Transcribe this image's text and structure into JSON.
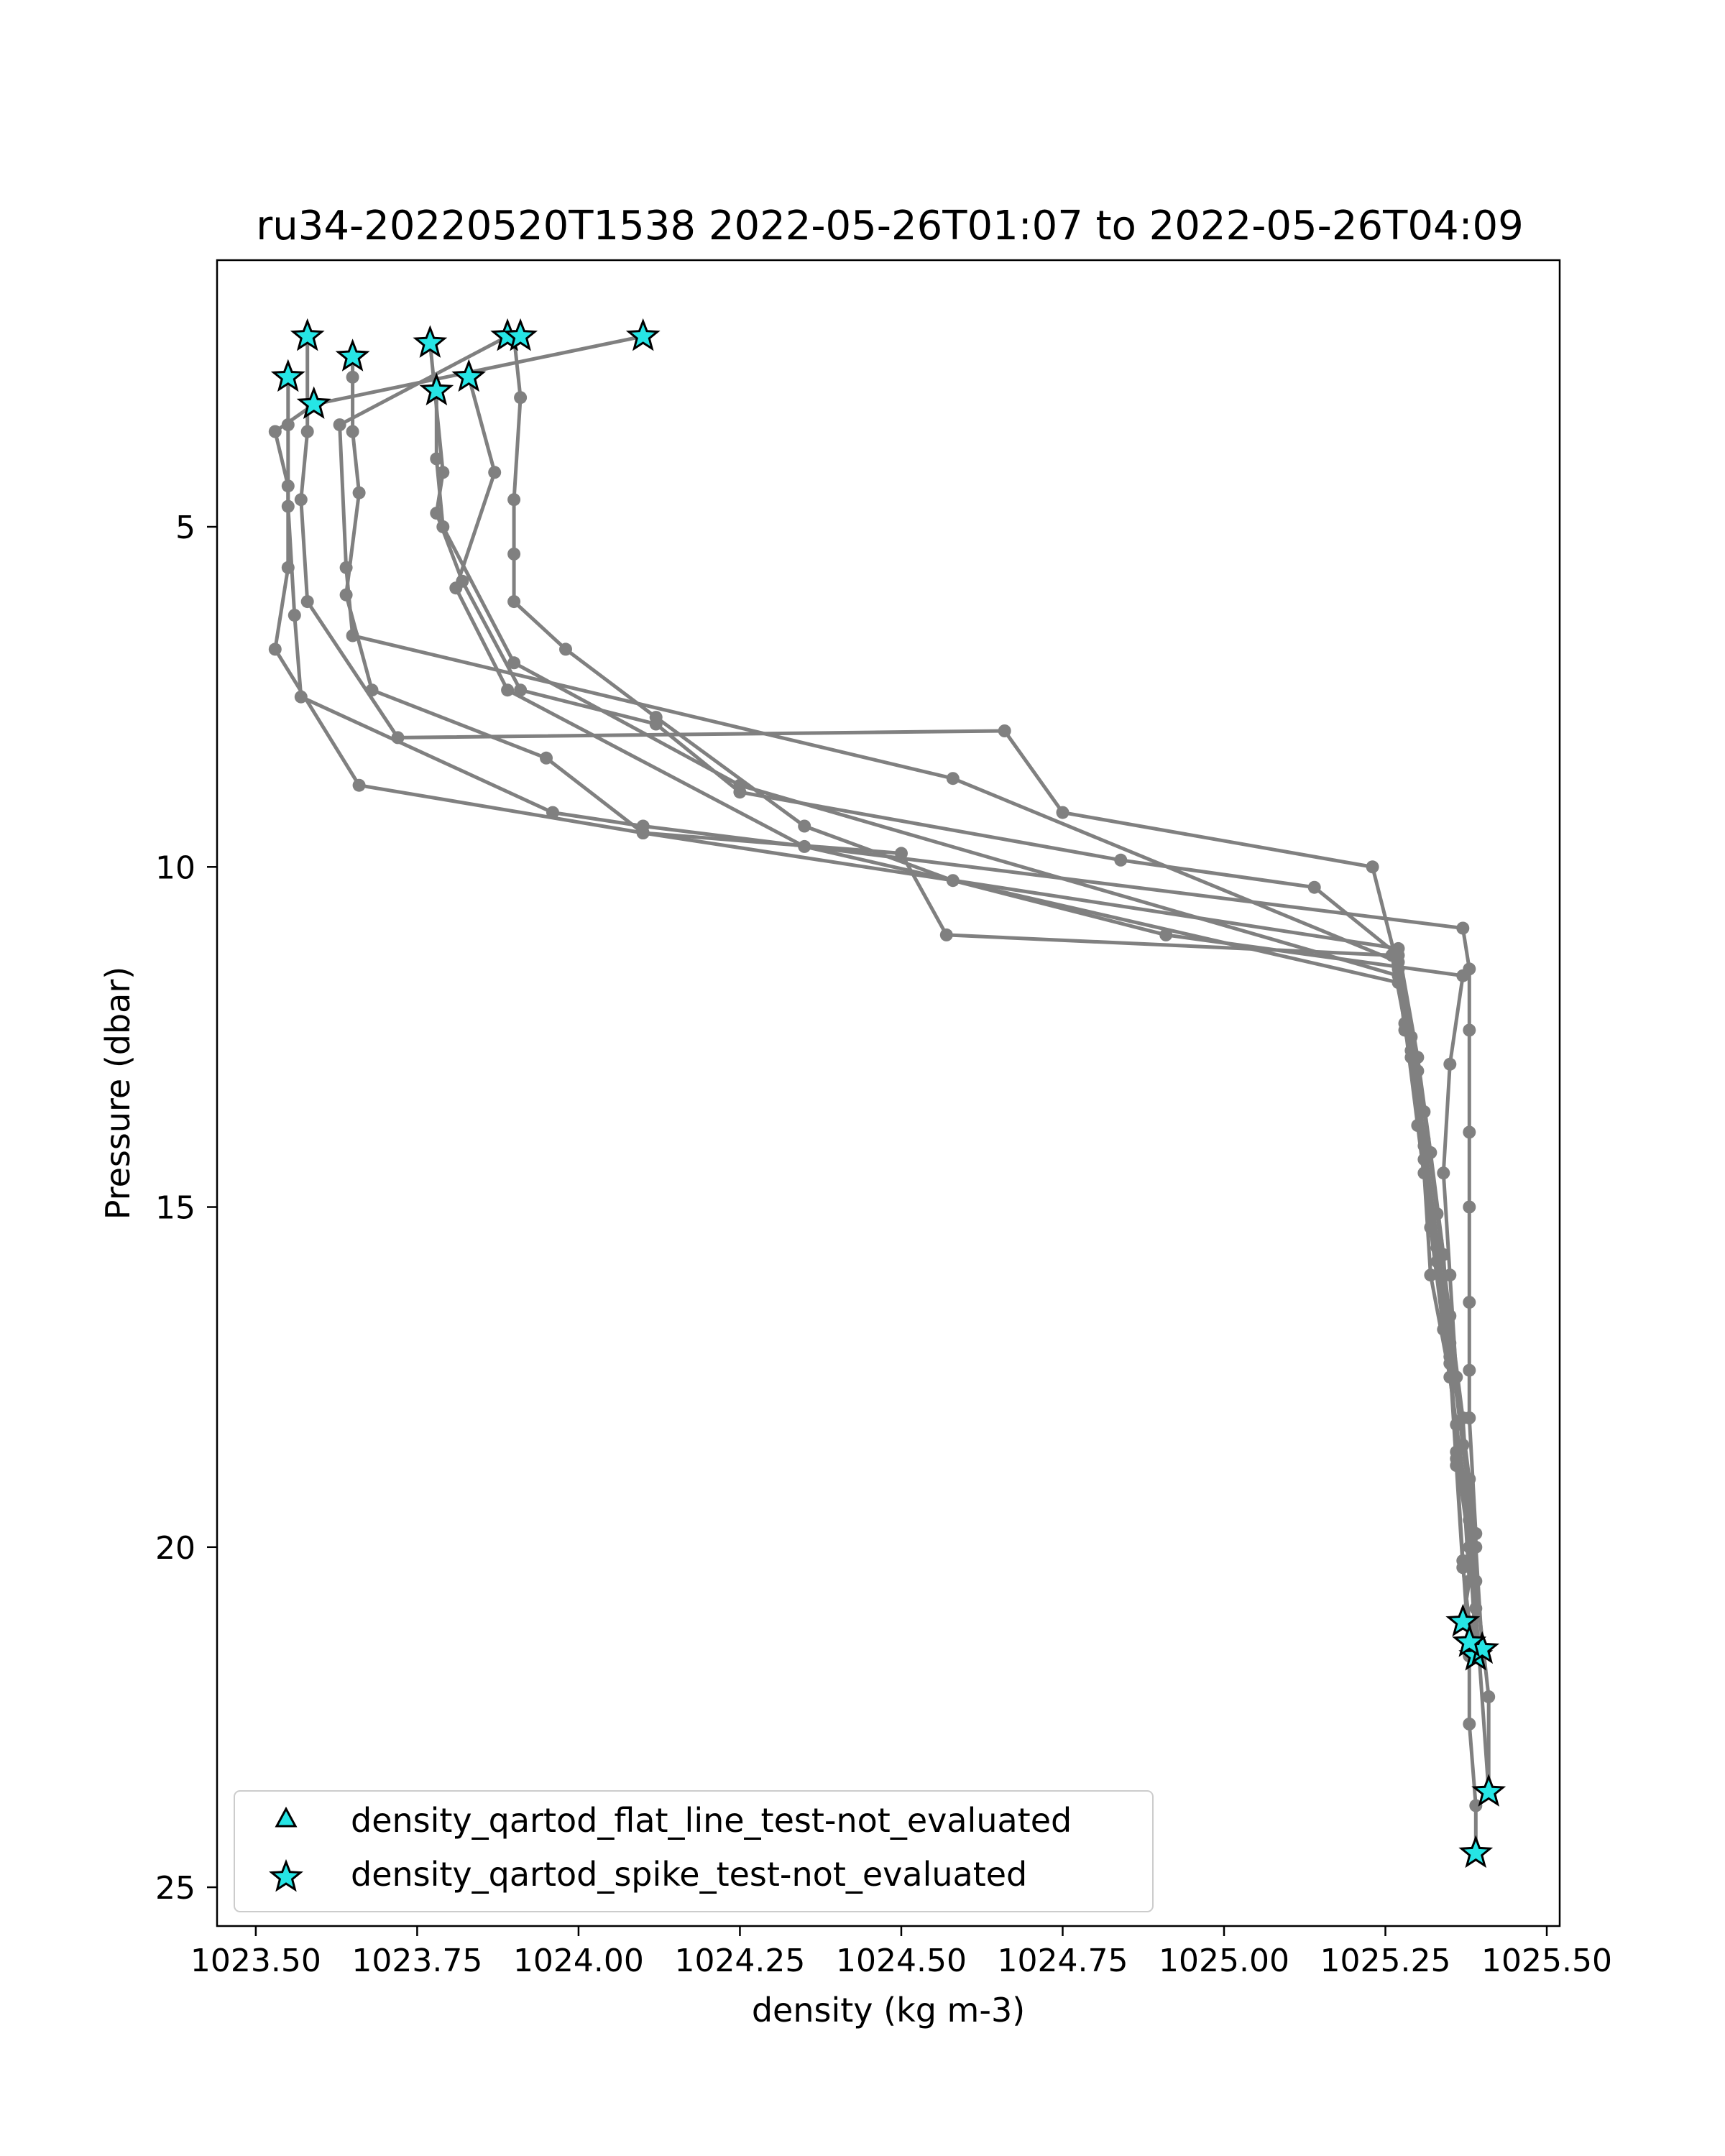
{
  "chart_data": {
    "type": "line",
    "title": "ru34-20220520T1538 2022-05-26T01:07 to 2022-05-26T04:09",
    "xlabel": "density (kg m-3)",
    "ylabel": "Pressure (dbar)",
    "xlim": [
      1023.44,
      1025.52
    ],
    "ylim": [
      25.57,
      1.08
    ],
    "y_inverted": true,
    "xticks": [
      "1023.50",
      "1023.75",
      "1024.00",
      "1024.25",
      "1024.50",
      "1024.75",
      "1025.00",
      "1025.25",
      "1025.50"
    ],
    "xtick_values": [
      1023.5,
      1023.75,
      1024.0,
      1024.25,
      1024.5,
      1024.75,
      1025.0,
      1025.25,
      1025.5
    ],
    "yticks": [
      "5",
      "10",
      "15",
      "20",
      "25"
    ],
    "ytick_values": [
      5,
      10,
      15,
      20,
      25
    ],
    "grid": false,
    "line_color": "#808080",
    "marker_face_color": "#26e5e5",
    "legend": {
      "position": "lower-left",
      "entries": [
        {
          "label": "density_qartod_flat_line_test-not_evaluated",
          "marker": "triangle"
        },
        {
          "label": "density_qartod_spike_test-not_evaluated",
          "marker": "star"
        }
      ]
    },
    "series": [
      {
        "points": [
          [
            1023.58,
            2.2
          ],
          [
            1023.58,
            3.6
          ],
          [
            1023.57,
            4.6
          ],
          [
            1023.58,
            6.1
          ],
          [
            1023.72,
            8.1
          ],
          [
            1024.66,
            8.0
          ],
          [
            1024.75,
            9.2
          ],
          [
            1025.23,
            10.0
          ],
          [
            1025.27,
            11.5
          ],
          [
            1025.3,
            13.0
          ],
          [
            1025.31,
            14.5
          ],
          [
            1025.32,
            16.0
          ],
          [
            1025.35,
            17.5
          ],
          [
            1025.37,
            19.0
          ],
          [
            1025.38,
            20.5
          ],
          [
            1025.37,
            21.1
          ]
        ]
      },
      {
        "points": [
          [
            1023.65,
            2.5
          ],
          [
            1023.65,
            2.8
          ],
          [
            1023.65,
            3.6
          ],
          [
            1023.66,
            4.5
          ],
          [
            1023.64,
            6.0
          ],
          [
            1023.68,
            7.4
          ],
          [
            1023.95,
            8.4
          ],
          [
            1024.1,
            9.5
          ],
          [
            1024.5,
            9.8
          ],
          [
            1024.57,
            11.0
          ],
          [
            1025.26,
            11.3
          ],
          [
            1025.28,
            12.3
          ],
          [
            1025.3,
            13.8
          ],
          [
            1025.32,
            15.3
          ],
          [
            1025.34,
            16.8
          ],
          [
            1025.36,
            18.2
          ],
          [
            1025.38,
            19.6
          ],
          [
            1025.39,
            21.6
          ]
        ]
      },
      {
        "points": [
          [
            1023.77,
            2.3
          ],
          [
            1023.79,
            4.2
          ],
          [
            1023.78,
            4.8
          ],
          [
            1023.82,
            5.8
          ],
          [
            1023.91,
            7.4
          ],
          [
            1024.12,
            7.9
          ],
          [
            1024.25,
            8.9
          ],
          [
            1024.84,
            9.9
          ],
          [
            1025.14,
            10.3
          ],
          [
            1025.27,
            11.3
          ],
          [
            1025.29,
            12.5
          ],
          [
            1025.31,
            14.0
          ],
          [
            1025.33,
            15.5
          ],
          [
            1025.35,
            17.0
          ],
          [
            1025.37,
            18.5
          ],
          [
            1025.39,
            20.0
          ],
          [
            1025.4,
            21.5
          ]
        ]
      },
      {
        "points": [
          [
            1023.9,
            2.2
          ],
          [
            1023.91,
            3.1
          ],
          [
            1023.9,
            4.6
          ],
          [
            1023.9,
            5.4
          ],
          [
            1023.9,
            6.1
          ],
          [
            1023.98,
            6.8
          ],
          [
            1024.12,
            7.8
          ],
          [
            1024.35,
            9.4
          ],
          [
            1024.58,
            10.2
          ],
          [
            1024.91,
            11.0
          ],
          [
            1025.37,
            11.6
          ],
          [
            1025.35,
            12.9
          ],
          [
            1025.34,
            14.5
          ],
          [
            1025.35,
            16.0
          ],
          [
            1025.36,
            17.5
          ],
          [
            1025.38,
            19.0
          ],
          [
            1025.39,
            20.5
          ],
          [
            1025.41,
            22.2
          ],
          [
            1025.41,
            23.6
          ]
        ]
      },
      {
        "points": [
          [
            1024.1,
            2.2
          ],
          [
            1023.59,
            3.2
          ],
          [
            1023.53,
            3.6
          ],
          [
            1023.55,
            4.4
          ],
          [
            1023.55,
            5.6
          ],
          [
            1023.53,
            6.8
          ],
          [
            1023.66,
            8.8
          ],
          [
            1024.1,
            9.5
          ],
          [
            1025.27,
            11.2
          ],
          [
            1025.3,
            12.8
          ],
          [
            1025.32,
            14.2
          ],
          [
            1025.34,
            15.7
          ],
          [
            1025.35,
            17.2
          ],
          [
            1025.36,
            18.7
          ],
          [
            1025.37,
            20.2
          ],
          [
            1025.38,
            21.6
          ],
          [
            1025.38,
            22.6
          ],
          [
            1025.39,
            23.8
          ],
          [
            1025.39,
            24.5
          ]
        ]
      },
      {
        "points": [
          [
            1023.55,
            2.8
          ],
          [
            1023.55,
            3.5
          ],
          [
            1023.55,
            4.7
          ],
          [
            1023.56,
            6.3
          ],
          [
            1023.57,
            7.5
          ],
          [
            1023.96,
            9.2
          ],
          [
            1024.1,
            9.4
          ],
          [
            1025.37,
            10.9
          ],
          [
            1025.38,
            11.5
          ],
          [
            1025.38,
            12.4
          ],
          [
            1025.38,
            13.9
          ],
          [
            1025.38,
            15.0
          ],
          [
            1025.38,
            16.4
          ],
          [
            1025.38,
            17.4
          ],
          [
            1025.38,
            18.1
          ],
          [
            1025.39,
            19.8
          ],
          [
            1025.39,
            21.4
          ],
          [
            1025.38,
            21.6
          ]
        ]
      },
      {
        "points": [
          [
            1023.83,
            2.8
          ],
          [
            1023.87,
            4.2
          ],
          [
            1023.81,
            5.9
          ],
          [
            1023.89,
            7.4
          ],
          [
            1024.35,
            9.7
          ],
          [
            1025.27,
            11.7
          ],
          [
            1025.29,
            12.8
          ],
          [
            1025.31,
            14.3
          ],
          [
            1025.33,
            15.8
          ],
          [
            1025.35,
            17.3
          ],
          [
            1025.36,
            18.8
          ],
          [
            1025.37,
            20.3
          ],
          [
            1025.38,
            21.1
          ],
          [
            1025.39,
            21.4
          ]
        ]
      },
      {
        "points": [
          [
            1023.78,
            3.0
          ],
          [
            1023.78,
            4.0
          ],
          [
            1023.79,
            5.0
          ],
          [
            1023.9,
            7.0
          ],
          [
            1024.25,
            8.8
          ],
          [
            1025.27,
            11.6
          ],
          [
            1025.28,
            12.4
          ],
          [
            1025.31,
            13.6
          ],
          [
            1025.33,
            15.1
          ],
          [
            1025.35,
            16.6
          ],
          [
            1025.37,
            18.1
          ],
          [
            1025.38,
            19.6
          ],
          [
            1025.39,
            20.9
          ],
          [
            1025.41,
            23.6
          ]
        ]
      },
      {
        "points": [
          [
            1023.89,
            2.2
          ],
          [
            1023.63,
            3.5
          ],
          [
            1023.64,
            5.6
          ],
          [
            1023.65,
            6.6
          ],
          [
            1024.58,
            8.7
          ],
          [
            1025.27,
            11.4
          ],
          [
            1025.29,
            12.7
          ],
          [
            1025.31,
            14.1
          ],
          [
            1025.33,
            15.6
          ],
          [
            1025.35,
            17.1
          ],
          [
            1025.36,
            18.6
          ],
          [
            1025.38,
            20.0
          ],
          [
            1025.39,
            21.4
          ]
        ]
      }
    ],
    "markers": {
      "spike_test_not_evaluated": [
        [
          1023.58,
          2.2
        ],
        [
          1023.65,
          2.5
        ],
        [
          1023.55,
          2.8
        ],
        [
          1023.59,
          3.2
        ],
        [
          1023.77,
          2.3
        ],
        [
          1023.78,
          3.0
        ],
        [
          1023.83,
          2.8
        ],
        [
          1023.89,
          2.2
        ],
        [
          1023.91,
          2.2
        ],
        [
          1024.1,
          2.2
        ],
        [
          1025.37,
          21.1
        ],
        [
          1025.39,
          21.6
        ],
        [
          1025.4,
          21.5
        ],
        [
          1025.38,
          21.4
        ],
        [
          1025.41,
          23.6
        ],
        [
          1025.39,
          24.5
        ]
      ],
      "flat_line_test_not_evaluated": []
    }
  }
}
